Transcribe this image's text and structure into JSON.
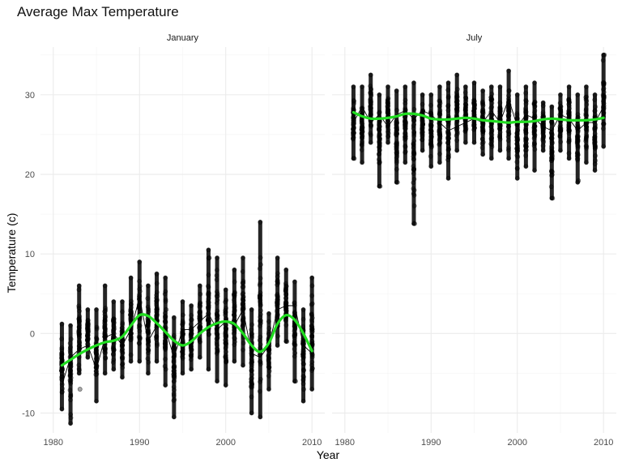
{
  "chart_data": {
    "type": "scatter",
    "title": "Average Max Temperature",
    "xlabel": "Year",
    "ylabel": "Temperature (c)",
    "xlim": [
      1980,
      2010
    ],
    "ylim": [
      -12.5,
      36
    ],
    "x_ticks": [
      1980,
      1990,
      2000,
      2010
    ],
    "y_ticks": [
      -10,
      0,
      10,
      20,
      30
    ],
    "grid": true,
    "legend": "none",
    "colors": {
      "points": "#000000",
      "yearly_line": "#000000",
      "smooth": "#22dd22",
      "grid": "#ebebeb"
    },
    "panels": [
      {
        "strip": "January",
        "years": [
          1981,
          1982,
          1983,
          1984,
          1985,
          1986,
          1987,
          1988,
          1989,
          1990,
          1991,
          1992,
          1993,
          1994,
          1995,
          1996,
          1997,
          1998,
          1999,
          2000,
          2001,
          2002,
          2003,
          2004,
          2005,
          2006,
          2007,
          2008,
          2009,
          2010
        ],
        "year_min": [
          -9.5,
          -11.3,
          -5.0,
          -3.0,
          -8.5,
          -5.0,
          -4.5,
          -5.5,
          -3.5,
          -3.5,
          -5.0,
          -3.5,
          -6.5,
          -10.5,
          -5.0,
          -4.5,
          -3.0,
          -4.5,
          -6.0,
          -6.5,
          -3.5,
          -4.0,
          -10.0,
          -10.5,
          -7.0,
          -1.5,
          -1.0,
          -6.0,
          -8.5,
          -7.0
        ],
        "year_max": [
          1.2,
          1.0,
          6.0,
          3.0,
          3.0,
          6.0,
          4.0,
          4.0,
          7.0,
          9.0,
          6.0,
          7.5,
          7.0,
          2.0,
          4.0,
          3.5,
          6.0,
          10.5,
          9.5,
          5.5,
          8.0,
          9.5,
          3.0,
          14.0,
          2.5,
          9.5,
          8.0,
          6.5,
          3.0,
          7.0
        ],
        "yearly_mean": [
          -6.5,
          -3.0,
          -2.0,
          -1.5,
          -4.5,
          -0.5,
          0.0,
          -1.5,
          0.5,
          4.5,
          -1.0,
          1.0,
          0.5,
          -3.0,
          0.5,
          0.5,
          1.5,
          2.5,
          0.5,
          1.5,
          1.0,
          3.0,
          -2.5,
          -3.0,
          -1.5,
          3.0,
          3.5,
          3.5,
          -1.5,
          -2.5
        ],
        "smooth": [
          -4.0,
          -3.3,
          -2.6,
          -2.0,
          -1.5,
          -1.1,
          -0.9,
          -0.4,
          1.0,
          2.3,
          2.2,
          1.3,
          0.2,
          -0.9,
          -1.5,
          -1.0,
          0.0,
          0.8,
          1.3,
          1.5,
          1.2,
          0.0,
          -1.5,
          -2.3,
          -1.2,
          1.2,
          2.3,
          1.7,
          0.0,
          -2.2
        ],
        "outliers": [
          [
            1983,
            -7.0
          ],
          [
            2008,
            -6.0
          ],
          [
            2007,
            -1.0
          ],
          [
            1993,
            3.0
          ],
          [
            1998,
            9.5
          ]
        ]
      },
      {
        "strip": "July",
        "years": [
          1981,
          1982,
          1983,
          1984,
          1985,
          1986,
          1987,
          1988,
          1989,
          1990,
          1991,
          1992,
          1993,
          1994,
          1995,
          1996,
          1997,
          1998,
          1999,
          2000,
          2001,
          2002,
          2003,
          2004,
          2005,
          2006,
          2007,
          2008,
          2009,
          2010
        ],
        "year_min": [
          22.0,
          21.5,
          24.0,
          18.5,
          24.0,
          19.0,
          21.5,
          13.8,
          23.0,
          21.0,
          21.5,
          19.5,
          23.0,
          24.0,
          24.0,
          22.5,
          22.0,
          23.0,
          22.0,
          19.5,
          21.0,
          20.5,
          23.0,
          17.0,
          23.0,
          22.0,
          19.0,
          21.5,
          20.5,
          23.5
        ],
        "year_max": [
          31.0,
          31.0,
          32.5,
          30.0,
          31.0,
          30.5,
          31.0,
          31.5,
          30.0,
          30.0,
          31.0,
          31.5,
          32.5,
          31.0,
          31.5,
          30.5,
          31.0,
          31.0,
          33.0,
          30.0,
          31.0,
          31.5,
          29.0,
          28.5,
          30.0,
          31.0,
          30.0,
          31.0,
          30.0,
          35.0
        ],
        "yearly_mean": [
          26.5,
          28.5,
          26.5,
          27.5,
          26.0,
          27.5,
          28.0,
          27.0,
          28.0,
          27.5,
          26.5,
          25.5,
          26.0,
          26.5,
          27.0,
          26.5,
          28.0,
          26.5,
          29.5,
          26.0,
          27.5,
          27.0,
          26.0,
          25.5,
          27.5,
          27.0,
          25.5,
          26.5,
          26.5,
          28.5
        ],
        "smooth": [
          27.8,
          27.3,
          27.0,
          27.0,
          27.1,
          27.3,
          27.6,
          27.6,
          27.4,
          27.0,
          26.9,
          26.9,
          27.0,
          27.1,
          27.0,
          26.8,
          26.7,
          26.6,
          26.5,
          26.6,
          26.6,
          26.7,
          26.9,
          27.0,
          26.9,
          26.8,
          26.8,
          26.8,
          26.9,
          27.1
        ],
        "outliers": [
          [
            1981,
            22.0
          ],
          [
            1984,
            18.5
          ],
          [
            1986,
            19.0
          ],
          [
            1988,
            13.8
          ],
          [
            2004,
            17.0
          ],
          [
            2007,
            19.2
          ],
          [
            2010,
            35.0
          ]
        ]
      }
    ]
  }
}
